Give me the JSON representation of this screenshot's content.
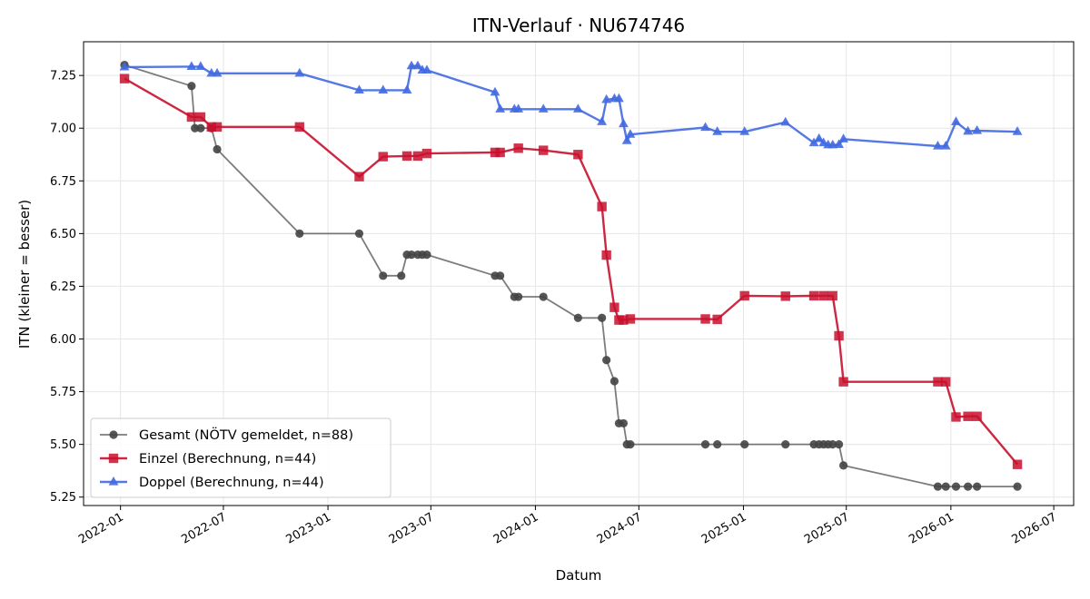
{
  "chart_data": {
    "type": "line",
    "title": "ITN-Verlauf · NU674746",
    "xlabel": "Datum",
    "ylabel": "ITN  (kleiner = besser)",
    "xlim": [
      "2021-10-28",
      "2026-08-05"
    ],
    "ylim": [
      5.21,
      7.41
    ],
    "x_ticks": [
      "2022-01-01",
      "2022-07-01",
      "2023-01-01",
      "2023-07-01",
      "2024-01-01",
      "2024-07-01",
      "2025-01-01",
      "2025-07-01",
      "2026-01-01",
      "2026-07-01"
    ],
    "x_tick_labels": [
      "2022-01",
      "2022-07",
      "2023-01",
      "2023-07",
      "2024-01",
      "2024-07",
      "2025-01",
      "2025-07",
      "2026-01",
      "2026-07"
    ],
    "y_ticks": [
      5.25,
      5.5,
      5.75,
      6.0,
      6.25,
      6.5,
      6.75,
      7.0,
      7.25
    ],
    "y_tick_labels": [
      "5.25",
      "5.50",
      "5.75",
      "6.00",
      "6.25",
      "6.50",
      "6.75",
      "7.00",
      "7.25"
    ],
    "grid": true,
    "legend_position": "lower-left",
    "series": [
      {
        "name": "Gesamt (NÖTV gemeldet, n=88)",
        "color": "#444444",
        "marker": "circle",
        "points": [
          [
            "2022-01-08",
            7.3
          ],
          [
            "2022-05-06",
            7.2
          ],
          [
            "2022-05-12",
            7.0
          ],
          [
            "2022-05-22",
            7.0
          ],
          [
            "2022-06-10",
            7.0
          ],
          [
            "2022-06-20",
            6.9
          ],
          [
            "2022-11-12",
            6.5
          ],
          [
            "2023-02-25",
            6.5
          ],
          [
            "2023-04-08",
            6.3
          ],
          [
            "2023-05-10",
            6.3
          ],
          [
            "2023-05-20",
            6.4
          ],
          [
            "2023-05-28",
            6.4
          ],
          [
            "2023-06-08",
            6.4
          ],
          [
            "2023-06-16",
            6.4
          ],
          [
            "2023-06-24",
            6.4
          ],
          [
            "2023-10-22",
            6.3
          ],
          [
            "2023-10-31",
            6.3
          ],
          [
            "2023-11-25",
            6.2
          ],
          [
            "2023-12-02",
            6.2
          ],
          [
            "2024-01-15",
            6.2
          ],
          [
            "2024-03-16",
            6.1
          ],
          [
            "2024-04-27",
            6.1
          ],
          [
            "2024-05-05",
            5.9
          ],
          [
            "2024-05-19",
            5.8
          ],
          [
            "2024-05-27",
            5.6
          ],
          [
            "2024-06-04",
            5.6
          ],
          [
            "2024-06-10",
            5.5
          ],
          [
            "2024-06-16",
            5.5
          ],
          [
            "2024-10-26",
            5.5
          ],
          [
            "2024-11-16",
            5.5
          ],
          [
            "2025-01-03",
            5.5
          ],
          [
            "2025-03-16",
            5.5
          ],
          [
            "2025-05-05",
            5.5
          ],
          [
            "2025-05-14",
            5.5
          ],
          [
            "2025-05-22",
            5.5
          ],
          [
            "2025-05-30",
            5.5
          ],
          [
            "2025-06-07",
            5.5
          ],
          [
            "2025-06-18",
            5.5
          ],
          [
            "2025-06-26",
            5.4
          ],
          [
            "2025-12-09",
            5.3
          ],
          [
            "2025-12-23",
            5.3
          ],
          [
            "2026-01-10",
            5.3
          ],
          [
            "2026-01-31",
            5.3
          ],
          [
            "2026-02-16",
            5.3
          ],
          [
            "2026-04-28",
            5.3
          ]
        ]
      },
      {
        "name": "Einzel (Berechnung, n=44)",
        "color": "#c8102e",
        "marker": "square",
        "points": [
          [
            "2022-01-08",
            7.235
          ],
          [
            "2022-05-06",
            7.053
          ],
          [
            "2022-05-22",
            7.053
          ],
          [
            "2022-06-10",
            7.006
          ],
          [
            "2022-06-20",
            7.006
          ],
          [
            "2022-11-12",
            7.006
          ],
          [
            "2023-02-25",
            6.77
          ],
          [
            "2023-04-08",
            6.865
          ],
          [
            "2023-05-20",
            6.868
          ],
          [
            "2023-06-08",
            6.868
          ],
          [
            "2023-06-24",
            6.88
          ],
          [
            "2023-10-22",
            6.885
          ],
          [
            "2023-10-31",
            6.885
          ],
          [
            "2023-12-02",
            6.905
          ],
          [
            "2024-01-15",
            6.895
          ],
          [
            "2024-03-16",
            6.875
          ],
          [
            "2024-04-27",
            6.628
          ],
          [
            "2024-05-05",
            6.398
          ],
          [
            "2024-05-19",
            6.15
          ],
          [
            "2024-05-27",
            6.09
          ],
          [
            "2024-06-04",
            6.09
          ],
          [
            "2024-06-16",
            6.095
          ],
          [
            "2024-10-26",
            6.095
          ],
          [
            "2024-11-16",
            6.093
          ],
          [
            "2025-01-03",
            6.205
          ],
          [
            "2025-03-16",
            6.203
          ],
          [
            "2025-05-05",
            6.205
          ],
          [
            "2025-05-22",
            6.205
          ],
          [
            "2025-06-07",
            6.205
          ],
          [
            "2025-06-18",
            6.015
          ],
          [
            "2025-06-26",
            5.797
          ],
          [
            "2025-12-09",
            5.797
          ],
          [
            "2025-12-23",
            5.797
          ],
          [
            "2026-01-10",
            5.63
          ],
          [
            "2026-01-31",
            5.633
          ],
          [
            "2026-02-16",
            5.633
          ],
          [
            "2026-04-28",
            5.405
          ]
        ]
      },
      {
        "name": "Doppel (Berechnung, n=44)",
        "color": "#4169e1",
        "marker": "triangle",
        "points": [
          [
            "2022-01-08",
            7.29
          ],
          [
            "2022-05-06",
            7.292
          ],
          [
            "2022-05-22",
            7.292
          ],
          [
            "2022-06-10",
            7.26
          ],
          [
            "2022-06-20",
            7.26
          ],
          [
            "2022-11-12",
            7.26
          ],
          [
            "2023-02-25",
            7.18
          ],
          [
            "2023-04-08",
            7.18
          ],
          [
            "2023-05-20",
            7.18
          ],
          [
            "2023-05-28",
            7.295
          ],
          [
            "2023-06-08",
            7.295
          ],
          [
            "2023-06-16",
            7.275
          ],
          [
            "2023-06-24",
            7.275
          ],
          [
            "2023-10-22",
            7.17
          ],
          [
            "2023-10-31",
            7.09
          ],
          [
            "2023-11-25",
            7.09
          ],
          [
            "2023-12-02",
            7.09
          ],
          [
            "2024-01-15",
            7.09
          ],
          [
            "2024-03-16",
            7.09
          ],
          [
            "2024-04-27",
            7.03
          ],
          [
            "2024-05-05",
            7.135
          ],
          [
            "2024-05-19",
            7.14
          ],
          [
            "2024-05-27",
            7.14
          ],
          [
            "2024-06-04",
            7.02
          ],
          [
            "2024-06-10",
            6.94
          ],
          [
            "2024-06-16",
            6.97
          ],
          [
            "2024-10-26",
            7.003
          ],
          [
            "2024-11-16",
            6.983
          ],
          [
            "2025-01-03",
            6.983
          ],
          [
            "2025-03-16",
            7.028
          ],
          [
            "2025-05-05",
            6.93
          ],
          [
            "2025-05-14",
            6.95
          ],
          [
            "2025-05-22",
            6.93
          ],
          [
            "2025-05-30",
            6.92
          ],
          [
            "2025-06-07",
            6.92
          ],
          [
            "2025-06-18",
            6.922
          ],
          [
            "2025-06-26",
            6.948
          ],
          [
            "2025-12-09",
            6.915
          ],
          [
            "2025-12-23",
            6.915
          ],
          [
            "2026-01-10",
            7.03
          ],
          [
            "2026-01-31",
            6.985
          ],
          [
            "2026-02-16",
            6.988
          ],
          [
            "2026-04-28",
            6.983
          ]
        ]
      }
    ]
  }
}
